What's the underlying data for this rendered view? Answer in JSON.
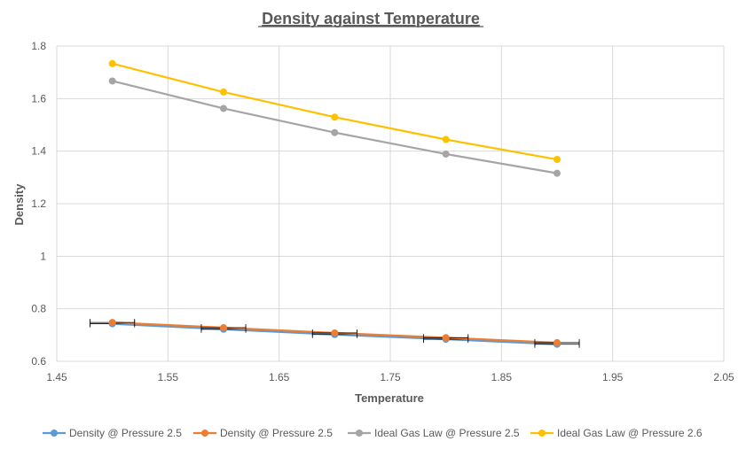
{
  "chart_data": {
    "type": "line",
    "title": "Density against Temperature",
    "xlabel": "Temperature",
    "ylabel": "Density",
    "xlim": [
      1.45,
      2.05
    ],
    "ylim": [
      0.6,
      1.8
    ],
    "xticks": [
      1.45,
      1.55,
      1.65,
      1.75,
      1.85,
      1.95,
      2.05
    ],
    "xtick_labels": [
      "1.45",
      "1.55",
      "1.65",
      "1.75",
      "1.85",
      "1.95",
      "2.05"
    ],
    "yticks": [
      0.6,
      0.8,
      1.0,
      1.2,
      1.4,
      1.6,
      1.8
    ],
    "ytick_labels": [
      "0.6",
      "0.8",
      "1",
      "1.2",
      "1.4",
      "1.6",
      "1.8"
    ],
    "grid": true,
    "legend_position": "bottom",
    "series": [
      {
        "name": "Density @ Pressure 2.5",
        "color": "#5B9BD5",
        "x": [
          1.5,
          1.6,
          1.7,
          1.8,
          1.9
        ],
        "y": [
          0.743,
          0.722,
          0.702,
          0.684,
          0.665
        ],
        "x_error": [
          0.02,
          0.02,
          0.02,
          0.02,
          0.02
        ]
      },
      {
        "name": "Density @ Pressure 2.5",
        "color": "#ED7D31",
        "x": [
          1.5,
          1.6,
          1.7,
          1.8,
          1.9
        ],
        "y": [
          0.748,
          0.728,
          0.708,
          0.69,
          0.671
        ],
        "x_error": [
          0.02,
          0.02,
          0.02,
          0.02,
          0.02
        ]
      },
      {
        "name": "Ideal Gas Law @ Pressure 2.5",
        "color": "#A5A5A5",
        "x": [
          1.5,
          1.6,
          1.7,
          1.8,
          1.9
        ],
        "y": [
          1.667,
          1.5625,
          1.4706,
          1.3889,
          1.3158
        ]
      },
      {
        "name": "Ideal Gas Law @ Pressure 2.6",
        "color": "#FFC000",
        "x": [
          1.5,
          1.6,
          1.7,
          1.8,
          1.9
        ],
        "y": [
          1.7333,
          1.625,
          1.5294,
          1.4444,
          1.3684
        ]
      }
    ]
  }
}
